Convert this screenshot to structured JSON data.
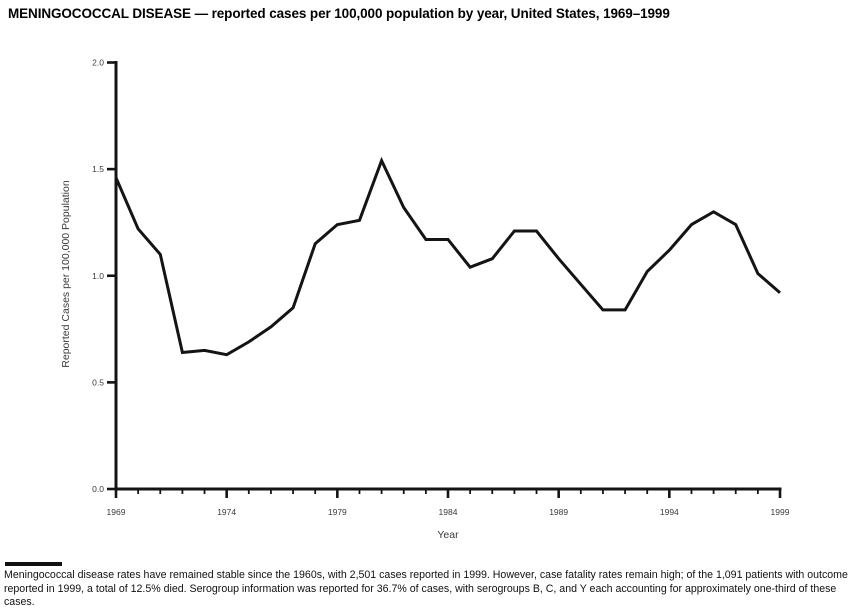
{
  "title": "MENINGOCOCCAL DISEASE — reported cases per 100,000 population by year, United States, 1969–1999",
  "chart_data": {
    "type": "line",
    "title": "MENINGOCOCCAL DISEASE — reported cases per 100,000 population by year, United States, 1969–1999",
    "xlabel": "Year",
    "ylabel": "Reported Cases per 100,000 Population",
    "x": [
      1969,
      1970,
      1971,
      1972,
      1973,
      1974,
      1975,
      1976,
      1977,
      1978,
      1979,
      1980,
      1981,
      1982,
      1983,
      1984,
      1985,
      1986,
      1987,
      1988,
      1989,
      1990,
      1991,
      1992,
      1993,
      1994,
      1995,
      1996,
      1997,
      1998,
      1999
    ],
    "values": [
      1.46,
      1.22,
      1.1,
      0.64,
      0.65,
      0.63,
      0.69,
      0.76,
      0.85,
      1.15,
      1.24,
      1.26,
      1.54,
      1.32,
      1.17,
      1.17,
      1.04,
      1.08,
      1.21,
      1.21,
      1.08,
      0.96,
      0.84,
      0.84,
      1.02,
      1.12,
      1.24,
      1.3,
      1.24,
      1.01,
      0.92
    ],
    "xlim": [
      1969,
      1999
    ],
    "ylim": [
      0.0,
      2.0
    ],
    "yticks": [
      0.0,
      0.5,
      1.0,
      1.5,
      2.0
    ],
    "ytick_labels": [
      "0.0",
      "0.5",
      "1.0",
      "1.5",
      "2.0"
    ],
    "xticks": [
      1969,
      1974,
      1979,
      1984,
      1989,
      1994,
      1999
    ],
    "xtick_labels": [
      "1969",
      "1974",
      "1979",
      "1984",
      "1989",
      "1994",
      "1999"
    ],
    "minor_xtick_step": 1,
    "grid": false,
    "legend": null,
    "line_color": "#141414",
    "axis_color": "#141414",
    "tick_label_color": "#3a3a3a"
  },
  "footnote": "Meningococcal disease rates have remained stable since the 1960s, with 2,501 cases reported in 1999. However, case fatality rates remain high; of the 1,091 patients with outcome reported in 1999, a total of 12.5% died. Serogroup information was reported for 36.7% of cases, with serogroups B, C, and Y each accounting for approximately one-third of these cases."
}
